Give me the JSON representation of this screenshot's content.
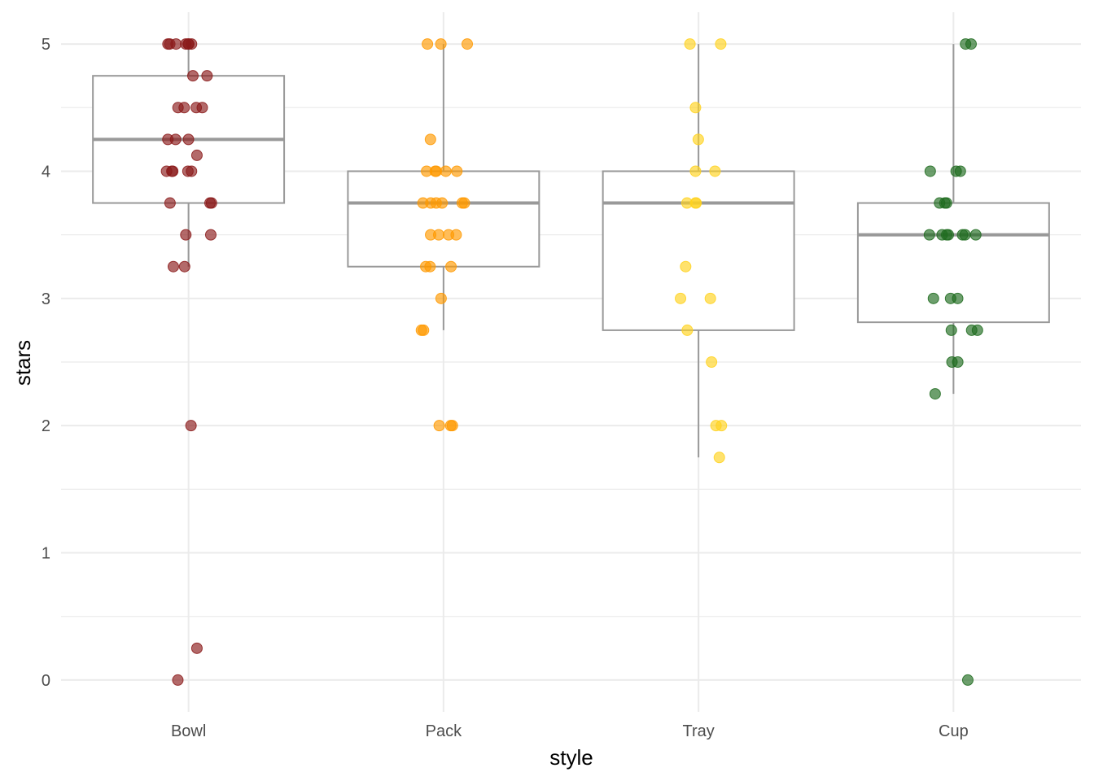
{
  "chart_data": {
    "type": "boxplot",
    "xlabel": "style",
    "ylabel": "stars",
    "categories": [
      "Bowl",
      "Pack",
      "Tray",
      "Cup"
    ],
    "ylim": [
      -0.25,
      5.25
    ],
    "yticks": [
      0,
      1,
      2,
      3,
      4,
      5
    ],
    "grid": true,
    "legend": "none",
    "boxes": [
      {
        "name": "Bowl",
        "q1": 3.75,
        "median": 4.25,
        "q3": 4.75,
        "whisker_low": 3.25,
        "whisker_high": 5.0
      },
      {
        "name": "Pack",
        "q1": 3.25,
        "median": 3.75,
        "q3": 4.0,
        "whisker_low": 2.75,
        "whisker_high": 5.0
      },
      {
        "name": "Tray",
        "q1": 2.75,
        "median": 3.75,
        "q3": 4.0,
        "whisker_low": 1.75,
        "whisker_high": 5.0
      },
      {
        "name": "Cup",
        "q1": 2.8125,
        "median": 3.5,
        "q3": 3.75,
        "whisker_low": 2.25,
        "whisker_high": 5.0
      }
    ],
    "points": [
      {
        "category": "Bowl",
        "color": "#8b1a1a",
        "values": [
          5,
          5,
          5,
          5,
          5,
          5,
          5,
          4.75,
          4.75,
          4.5,
          4.5,
          4.5,
          4.5,
          4.25,
          4.25,
          4.25,
          4.125,
          4,
          4,
          4,
          4,
          4,
          3.75,
          3.75,
          3.75,
          3.5,
          3.5,
          3.25,
          3.25,
          2,
          0.25,
          0
        ]
      },
      {
        "category": "Pack",
        "color": "#ff9900",
        "values": [
          5,
          5,
          5,
          4.25,
          4,
          4,
          4,
          4,
          4,
          3.75,
          3.75,
          3.75,
          3.75,
          3.75,
          3.75,
          3.5,
          3.5,
          3.5,
          3.5,
          3.25,
          3.25,
          3.25,
          3,
          2.75,
          2.75,
          2,
          2,
          2
        ]
      },
      {
        "category": "Tray",
        "color": "#ffd21f",
        "values": [
          5,
          5,
          4.5,
          4.25,
          4,
          4,
          3.75,
          3.75,
          3.75,
          3.25,
          3,
          3,
          2.75,
          2.5,
          2,
          2,
          1.75
        ]
      },
      {
        "category": "Cup",
        "color": "#1f6b1f",
        "values": [
          5,
          5,
          4,
          4,
          4,
          3.75,
          3.75,
          3.75,
          3.5,
          3.5,
          3.5,
          3.5,
          3.5,
          3.5,
          3.5,
          3,
          3,
          3,
          2.75,
          2.75,
          2.75,
          2.5,
          2.5,
          2.25,
          0
        ]
      }
    ]
  }
}
